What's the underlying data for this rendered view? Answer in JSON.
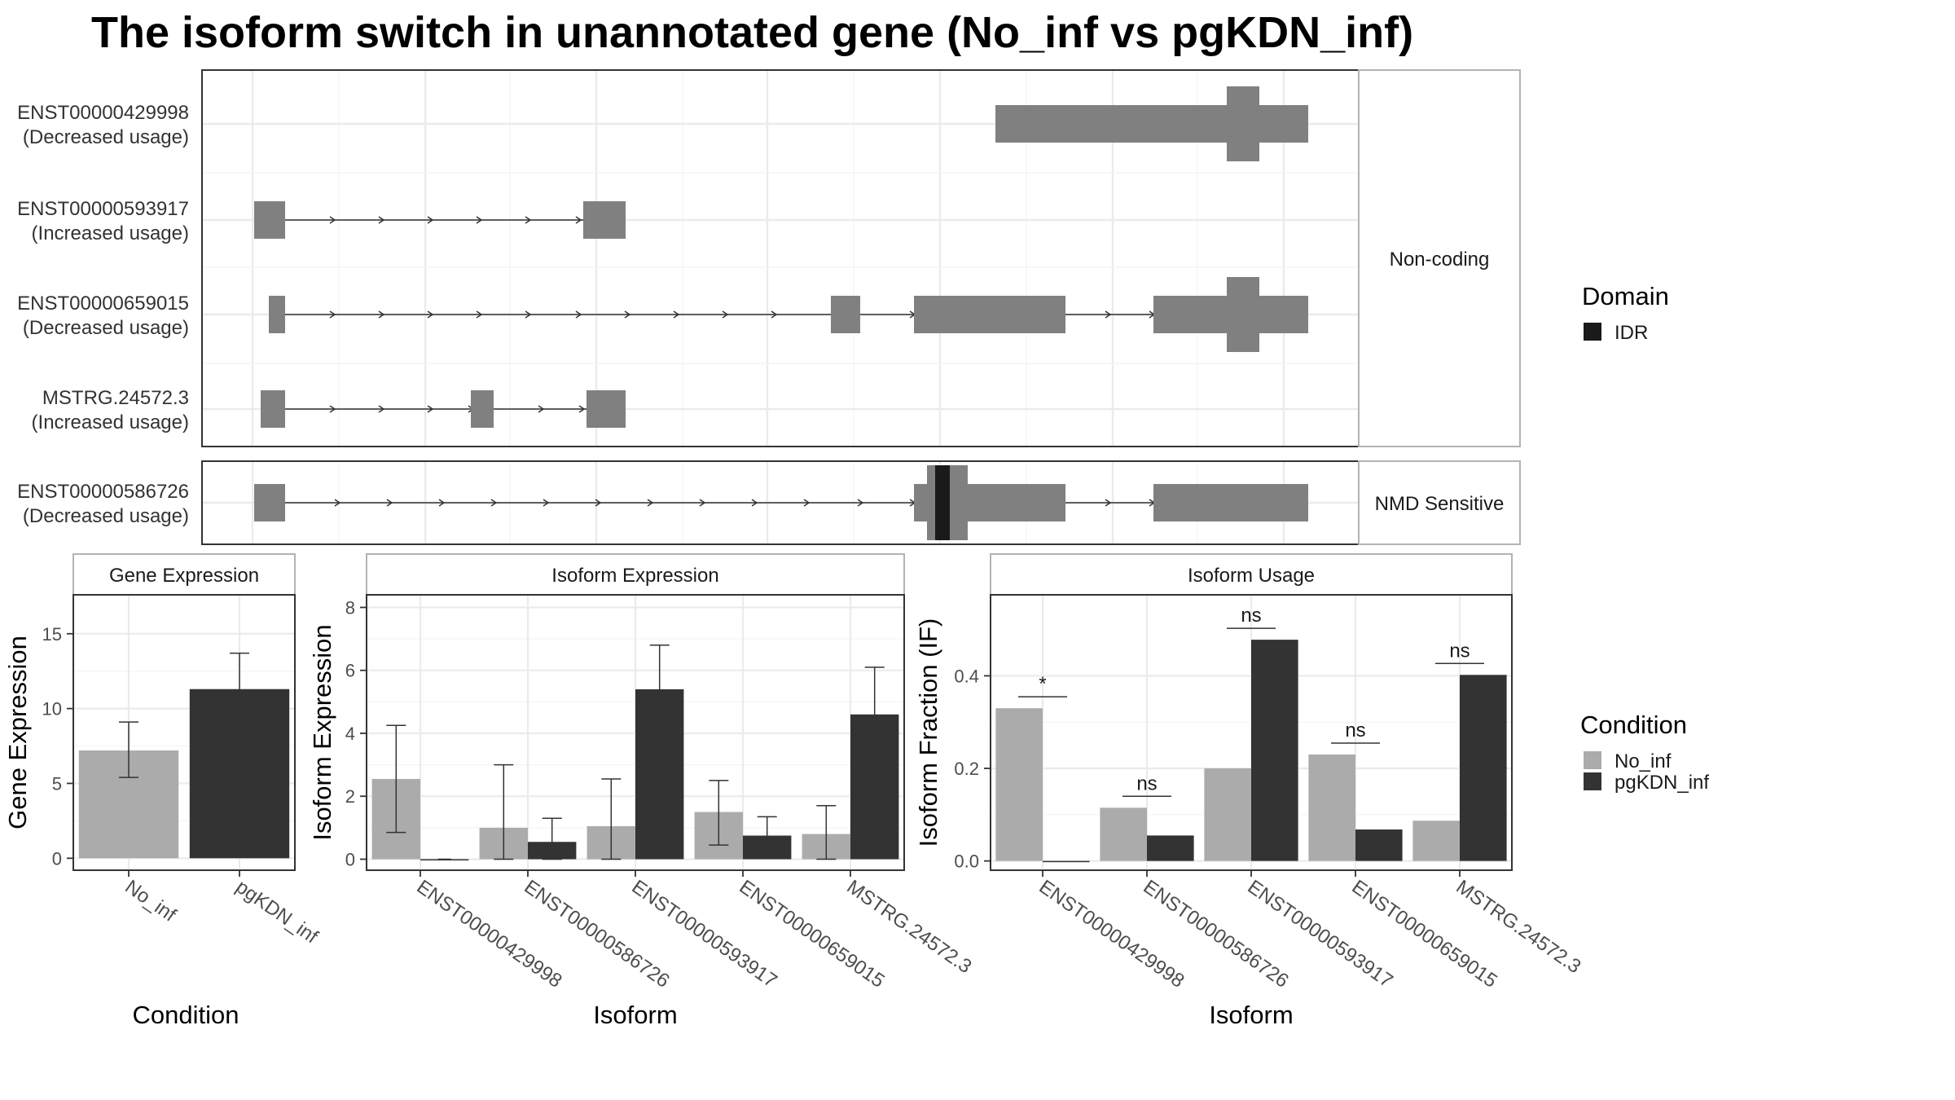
{
  "title": "The isoform switch in unannotated gene (No_inf vs pgKDN_inf)",
  "colors": {
    "no_inf": "#ababab",
    "pgkdn_inf": "#333333",
    "exon": "#808080",
    "idr": "#1a1a1a",
    "grid": "#ebebeb",
    "strip_bg": "#ffffff",
    "panel_border": "#333333",
    "strip_border": "#b3b3b3"
  },
  "structure": {
    "facets": [
      {
        "label": "Non-coding",
        "isoforms": [
          {
            "id": "ENST00000429998",
            "usage": "(Decreased usage)"
          },
          {
            "id": "ENST00000593917",
            "usage": "(Increased usage)"
          },
          {
            "id": "ENST00000659015",
            "usage": "(Decreased usage)"
          },
          {
            "id": "MSTRG.24572.3",
            "usage": "(Increased usage)"
          }
        ]
      },
      {
        "label": "NMD Sensitive",
        "isoforms": [
          {
            "id": "ENST00000586726",
            "usage": "(Decreased usage)"
          }
        ]
      }
    ]
  },
  "legends": {
    "domain": {
      "title": "Domain",
      "items": [
        {
          "label": "IDR",
          "color": "#1a1a1a"
        }
      ]
    },
    "condition": {
      "title": "Condition",
      "items": [
        {
          "label": "No_inf",
          "color": "#ababab"
        },
        {
          "label": "pgKDN_inf",
          "color": "#333333"
        }
      ]
    }
  },
  "chart_data": [
    {
      "type": "bar",
      "title": "Gene Expression",
      "xlabel": "Condition",
      "ylabel": "Gene Expression",
      "categories": [
        "No_inf",
        "pgKDN_inf"
      ],
      "values": [
        7.2,
        11.3
      ],
      "error_low": [
        5.4,
        9.0
      ],
      "error_high": [
        9.1,
        13.7
      ],
      "ylim": [
        -0.8,
        17.6
      ],
      "yticks": [
        0,
        5,
        10,
        15
      ]
    },
    {
      "type": "bar",
      "title": "Isoform Expression",
      "xlabel": "Isoform",
      "ylabel": "Isoform Expression",
      "categories": [
        "ENST00000429998",
        "ENST00000586726",
        "ENST00000593917",
        "ENST00000659015",
        "MSTRG.24572.3"
      ],
      "series": [
        {
          "name": "No_inf",
          "values": [
            2.55,
            1.0,
            1.05,
            1.5,
            0.8
          ],
          "error_low": [
            0.85,
            0.0,
            0.0,
            0.45,
            0.0
          ],
          "error_high": [
            4.25,
            3.0,
            2.55,
            2.5,
            1.7
          ]
        },
        {
          "name": "pgKDN_inf",
          "values": [
            0.0,
            0.55,
            5.4,
            0.75,
            4.6
          ],
          "error_low": [
            0.0,
            0.0,
            4.0,
            0.2,
            3.05
          ],
          "error_high": [
            0.0,
            1.3,
            6.8,
            1.35,
            6.1
          ]
        }
      ],
      "ylim": [
        -0.35,
        8.4
      ],
      "yticks": [
        0,
        2,
        4,
        6,
        8
      ]
    },
    {
      "type": "bar",
      "title": "Isoform Usage",
      "xlabel": "Isoform",
      "ylabel": "Isoform Fraction (IF)",
      "categories": [
        "ENST00000429998",
        "ENST00000586726",
        "ENST00000593917",
        "ENST00000659015",
        "MSTRG.24572.3"
      ],
      "series": [
        {
          "name": "No_inf",
          "values": [
            0.33,
            0.115,
            0.2,
            0.23,
            0.087
          ]
        },
        {
          "name": "pgKDN_inf",
          "values": [
            0.0,
            0.055,
            0.478,
            0.068,
            0.402
          ]
        }
      ],
      "significance": [
        "*",
        "ns",
        "ns",
        "ns",
        "ns"
      ],
      "ylim": [
        -0.02,
        0.575
      ],
      "yticks": [
        0.0,
        0.2,
        0.4
      ],
      "ytick_labels": [
        "0.0",
        "0.2",
        "0.4"
      ]
    }
  ]
}
